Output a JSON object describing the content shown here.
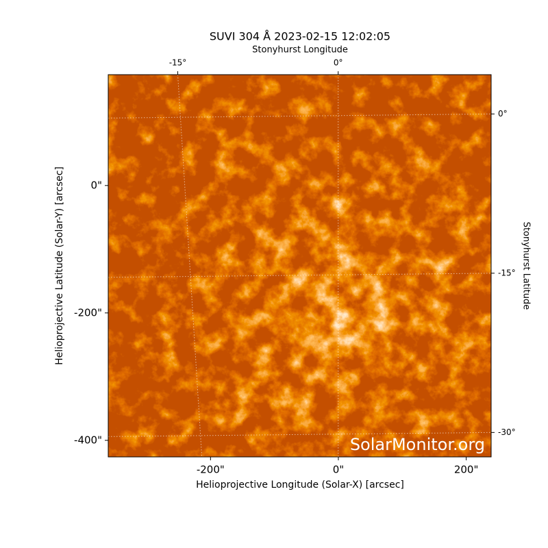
{
  "chart_data": {
    "type": "image",
    "title": "SUVI 304 Å 2023-02-15 12:02:05",
    "xlabel": "Helioprojective Longitude (Solar-X) [arcsec]",
    "ylabel": "Helioprojective Latitude (Solar-Y) [arcsec]",
    "x2label": "Stonyhurst Longitude",
    "y2label": "Stonyhurst Latitude",
    "watermark": "SolarMonitor.org",
    "xlim": [
      -360,
      239
    ],
    "ylim": [
      -426,
      174
    ],
    "xticks": [
      {
        "value": -200,
        "label": "-200\""
      },
      {
        "value": 0,
        "label": "0\""
      },
      {
        "value": 200,
        "label": "200\""
      }
    ],
    "yticks": [
      {
        "value": 0,
        "label": "0\""
      },
      {
        "value": -200,
        "label": "-200\""
      },
      {
        "value": -400,
        "label": "-400\""
      }
    ],
    "x2lim": [
      -21.5,
      14.3
    ],
    "y2lim": [
      -32.3,
      3.7
    ],
    "x2ticks": [
      {
        "value": -15,
        "label": "-15°"
      },
      {
        "value": 0,
        "label": "0°"
      }
    ],
    "y2ticks": [
      {
        "value": 0,
        "label": "0°"
      },
      {
        "value": -15,
        "label": "-15°"
      },
      {
        "value": -30,
        "label": "-30°"
      }
    ],
    "grid": true
  }
}
